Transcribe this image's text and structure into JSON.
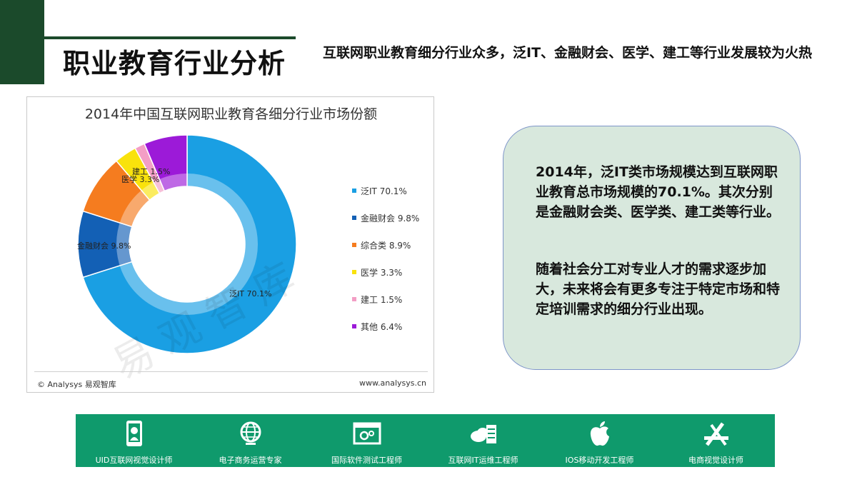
{
  "header": {
    "title": "职业教育行业分析",
    "subtitle": "互联网职业教育细分行业众多，泛IT、金融财会、医学、建工等行业发展较为火热"
  },
  "chart_data": {
    "type": "pie",
    "style": "donut",
    "title": "2014年中国互联网职业教育各细分行业市场份额",
    "legend_position": "right",
    "categories": [
      "泛IT",
      "金融财会",
      "综合类",
      "医学",
      "建工",
      "其他"
    ],
    "values": [
      70.1,
      9.8,
      8.9,
      3.3,
      1.5,
      6.4
    ],
    "unit": "%",
    "colors": [
      "#1a9fe3",
      "#1360b5",
      "#f57c1f",
      "#f9e20c",
      "#f39ec5",
      "#9c1ad8"
    ],
    "legend_labels": [
      "泛IT 70.1%",
      "金融财会 9.8%",
      "综合类 8.9%",
      "医学 3.3%",
      "建工 1.5%",
      "其他 6.4%"
    ],
    "slice_labels": [
      "泛IT 70.1%",
      "金融财会 9.8%",
      "",
      "医学 3.3%",
      "建工 1.5%",
      ""
    ],
    "source": "© Analysys 易观智库",
    "site": "www.analysys.cn",
    "watermark": "易观智库"
  },
  "info": {
    "paragraph1": "2014年，泛IT类市场规模达到互联网职业教育总市场规模的70.1%。其次分别是金融财会类、医学类、建工类等行业。",
    "paragraph2": "随着社会分工对专业人才的需求逐步加大，未来将会有更多专注于特定市场和特定培训需求的细分行业出现。"
  },
  "careers": [
    {
      "label": "UID互联网视觉设计师",
      "icon": "design-tablet-icon"
    },
    {
      "label": "电子商务运营专家",
      "icon": "globe-icon"
    },
    {
      "label": "国际软件测试工程师",
      "icon": "settings-window-icon"
    },
    {
      "label": "互联网IT运维工程师",
      "icon": "cloud-server-icon"
    },
    {
      "label": "IOS移动开发工程师",
      "icon": "apple-icon"
    },
    {
      "label": "电商视觉设计师",
      "icon": "design-tools-icon"
    }
  ]
}
